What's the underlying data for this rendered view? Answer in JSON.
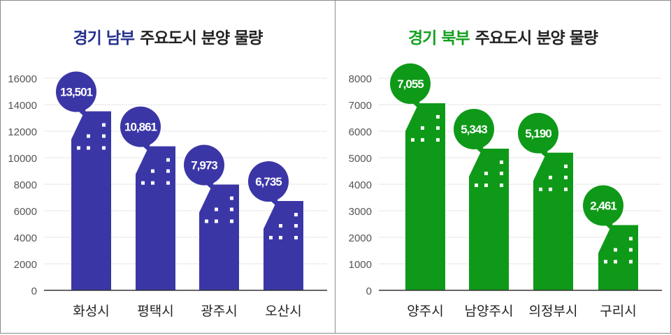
{
  "chart_data": [
    {
      "type": "bar",
      "title_highlight": "경기 남부",
      "title_rest": "주요도시 분양 물량",
      "categories": [
        "화성시",
        "평택시",
        "광주시",
        "오산시"
      ],
      "values": [
        13501,
        10861,
        7973,
        6735
      ],
      "data_labels": [
        "13,501",
        "10,861",
        "7,973",
        "6,735"
      ],
      "ylim": [
        0,
        16000
      ],
      "yticks": [
        "0",
        "2000",
        "4000",
        "6000",
        "8000",
        "10000",
        "12000",
        "14000",
        "16000"
      ],
      "grid": true,
      "colors": {
        "bar": "#3b36a6",
        "title_highlight": "#25308f"
      }
    },
    {
      "type": "bar",
      "title_highlight": "경기 북부",
      "title_rest": "주요도시 분양 물량",
      "categories": [
        "양주시",
        "남양주시",
        "의정부시",
        "구리시"
      ],
      "values": [
        7055,
        5343,
        5190,
        2461
      ],
      "data_labels": [
        "7,055",
        "5,343",
        "5,190",
        "2,461"
      ],
      "ylim": [
        0,
        8000
      ],
      "yticks": [
        "0",
        "1000",
        "2000",
        "3000",
        "4000",
        "5000",
        "6000",
        "7000",
        "8000"
      ],
      "grid": true,
      "colors": {
        "bar": "#0f9918",
        "title_highlight": "#14a01f"
      }
    }
  ]
}
